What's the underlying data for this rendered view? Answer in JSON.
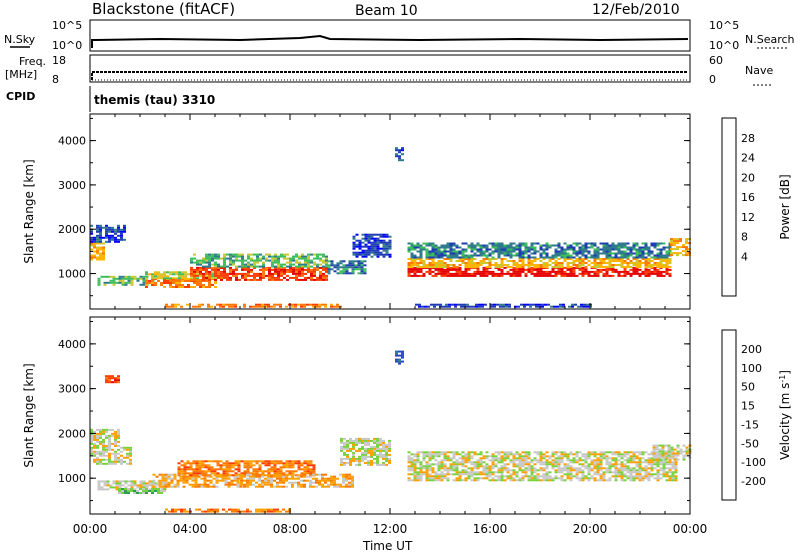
{
  "header": {
    "station": "Blackstone (fitACF)",
    "beam": "Beam 10",
    "date": "12/Feb/2010"
  },
  "top_panels": {
    "nsky_label": "N.Sky",
    "nsky_ticks": [
      "10^5",
      "10^0"
    ],
    "nsearch_label": "N.Search",
    "nsearch_ticks": [
      "10^5",
      "10^0"
    ],
    "freq_label": "Freq.",
    "freq_unit": "[MHz]",
    "freq_ticks": [
      "18",
      "8"
    ],
    "nave_label": "Nave",
    "nave_ticks": [
      "60",
      "0"
    ],
    "cpid_label": "CPID",
    "cpid_text": "themis (tau) 3310"
  },
  "chart_data": [
    {
      "type": "heatmap",
      "panel": "power",
      "ylabel": "Slant Range [km]",
      "xlabel": "",
      "ylim": [
        200,
        4600
      ],
      "yticks": [
        "4000",
        "3000",
        "2000",
        "1000"
      ],
      "xlim": [
        0,
        24
      ],
      "colorbar": {
        "label": "Power [dB]",
        "ticks": [
          "28",
          "24",
          "20",
          "16",
          "12",
          "8",
          "4"
        ],
        "colors": [
          "#0000ff",
          "#1e3cb4",
          "#2f7a8c",
          "#3cbe5a",
          "#c8c832",
          "#ffb400",
          "#ff7800",
          "#ff3c00",
          "#e60000"
        ]
      },
      "bands": [
        {
          "x0": 0.0,
          "x1": 0.6,
          "y0": 1300,
          "y1": 1700,
          "level": 5
        },
        {
          "x0": 0.0,
          "x1": 1.4,
          "y0": 1700,
          "y1": 2100,
          "level": 1
        },
        {
          "x0": 0.3,
          "x1": 2.5,
          "y0": 750,
          "y1": 950,
          "level": 3
        },
        {
          "x0": 2.2,
          "x1": 5.0,
          "y0": 700,
          "y1": 900,
          "level": 6
        },
        {
          "x0": 2.2,
          "x1": 5.0,
          "y0": 900,
          "y1": 1050,
          "level": 4
        },
        {
          "x0": 4.0,
          "x1": 9.5,
          "y0": 850,
          "y1": 1150,
          "level": 7
        },
        {
          "x0": 4.0,
          "x1": 9.5,
          "y0": 1150,
          "y1": 1450,
          "level": 3
        },
        {
          "x0": 9.5,
          "x1": 11.0,
          "y0": 1000,
          "y1": 1300,
          "level": 2
        },
        {
          "x0": 10.5,
          "x1": 12.0,
          "y0": 1400,
          "y1": 1900,
          "level": 1
        },
        {
          "x0": 12.2,
          "x1": 12.5,
          "y0": 3550,
          "y1": 3850,
          "level": 1
        },
        {
          "x0": 12.7,
          "x1": 23.2,
          "y0": 950,
          "y1": 1150,
          "level": 8
        },
        {
          "x0": 12.7,
          "x1": 23.2,
          "y0": 1150,
          "y1": 1350,
          "level": 5
        },
        {
          "x0": 12.7,
          "x1": 23.2,
          "y0": 1350,
          "y1": 1700,
          "level": 2
        },
        {
          "x0": 23.2,
          "x1": 24.0,
          "y0": 1400,
          "y1": 1800,
          "level": 5
        },
        {
          "x0": 3.0,
          "x1": 10.0,
          "y0": 250,
          "y1": 320,
          "level": 6
        },
        {
          "x0": 13.0,
          "x1": 20.0,
          "y0": 250,
          "y1": 320,
          "level": 1
        }
      ]
    },
    {
      "type": "heatmap",
      "panel": "velocity",
      "ylabel": "Slant Range [km]",
      "xlabel": "Time UT",
      "ylim": [
        200,
        4600
      ],
      "yticks": [
        "4000",
        "3000",
        "2000",
        "1000"
      ],
      "xlim": [
        0,
        24
      ],
      "xticks": [
        "00:00",
        "04:00",
        "08:00",
        "12:00",
        "16:00",
        "20:00",
        "00:00"
      ],
      "colorbar": {
        "label": "Velocity [m s",
        "label_sup": "-1",
        "label_end": "]",
        "ticks": [
          "200",
          "100",
          "50",
          "15",
          "-15",
          "-50",
          "-100",
          "-200"
        ],
        "colors": [
          "#2846c8",
          "#1e7896",
          "#28a050",
          "#78d23c",
          "#c8c8c8",
          "#ffa000",
          "#ff7800",
          "#ff3c00",
          "#e60000"
        ]
      },
      "bands": [
        {
          "x0": 0.0,
          "x1": 1.6,
          "y0": 1300,
          "y1": 1700,
          "level": 4
        },
        {
          "x0": 0.0,
          "x1": 1.2,
          "y0": 1700,
          "y1": 2100,
          "level": 4
        },
        {
          "x0": 0.3,
          "x1": 3.0,
          "y0": 750,
          "y1": 950,
          "level": 4
        },
        {
          "x0": 1.0,
          "x1": 3.0,
          "y0": 650,
          "y1": 780,
          "level": 3
        },
        {
          "x0": 2.5,
          "x1": 6.0,
          "y0": 800,
          "y1": 1100,
          "level": 5
        },
        {
          "x0": 3.5,
          "x1": 9.0,
          "y0": 1050,
          "y1": 1400,
          "level": 6
        },
        {
          "x0": 6.0,
          "x1": 10.5,
          "y0": 800,
          "y1": 1100,
          "level": 5
        },
        {
          "x0": 10.0,
          "x1": 12.0,
          "y0": 1300,
          "y1": 1900,
          "level": 4
        },
        {
          "x0": 12.2,
          "x1": 12.5,
          "y0": 3550,
          "y1": 3850,
          "level": 0
        },
        {
          "x0": 12.7,
          "x1": 23.5,
          "y0": 950,
          "y1": 1600,
          "level": 4
        },
        {
          "x0": 22.5,
          "x1": 24.0,
          "y0": 1400,
          "y1": 1750,
          "level": 4
        },
        {
          "x0": 3.0,
          "x1": 8.0,
          "y0": 250,
          "y1": 320,
          "level": 6
        },
        {
          "x0": 0.6,
          "x1": 1.2,
          "y0": 3150,
          "y1": 3300,
          "level": 7
        }
      ]
    }
  ]
}
